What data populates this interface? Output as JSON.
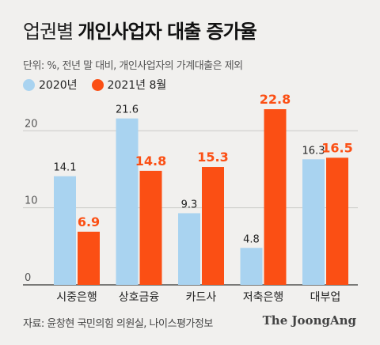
{
  "header": {
    "title_prefix": "업권별",
    "title_main": "개인사업자 대출 증가율",
    "unit_note": "단위: %, 전년 말 대비, 개인사업자의 가계대출은 제외"
  },
  "legend": [
    {
      "label": "2020년",
      "color": "#a9d3f0"
    },
    {
      "label": "2021년 8월",
      "color": "#fb4f14"
    }
  ],
  "chart_data": {
    "type": "bar",
    "categories": [
      "시중은행",
      "상호금융",
      "카드사",
      "저축은행",
      "대부업"
    ],
    "series": [
      {
        "name": "2020년",
        "values": [
          14.1,
          21.6,
          9.3,
          4.8,
          16.3
        ],
        "color": "#a9d3f0",
        "label_color": "#222222"
      },
      {
        "name": "2021년 8월",
        "values": [
          6.9,
          14.8,
          15.3,
          22.8,
          16.5
        ],
        "color": "#fb4f14",
        "label_color": "#fb4f14"
      }
    ],
    "y_ticks": [
      0,
      10,
      20
    ],
    "ylim": [
      0,
      22.8
    ],
    "grid": true
  },
  "footer": {
    "source": "자료: 윤창현 국민의힘 의원실, 나이스평가정보",
    "brand": "The JoongAng"
  }
}
